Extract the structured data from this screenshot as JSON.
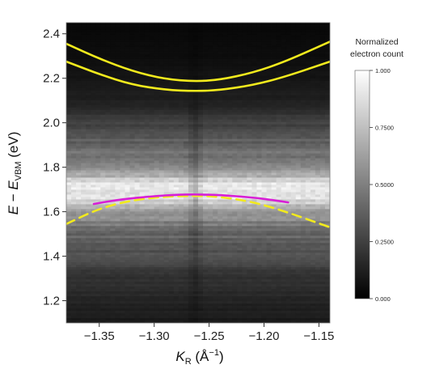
{
  "chart_data": {
    "type": "heatmap",
    "title": "",
    "xlabel": {
      "main": "K",
      "sub": "R",
      "unit": " (Å",
      "exp": "−1",
      "close": ")"
    },
    "ylabel": {
      "main": "E",
      "dash": " − ",
      "main2": "E",
      "sub": "VBM",
      "unit": " (eV)"
    },
    "xlim": [
      -1.38,
      -1.14
    ],
    "ylim": [
      1.1,
      2.45
    ],
    "xticks": [
      {
        "value": -1.35,
        "label": "−1.35"
      },
      {
        "value": -1.3,
        "label": "−1.30"
      },
      {
        "value": -1.25,
        "label": "−1.25"
      },
      {
        "value": -1.2,
        "label": "−1.20"
      },
      {
        "value": -1.15,
        "label": "−1.15"
      }
    ],
    "yticks": [
      {
        "value": 1.2,
        "label": "1.2"
      },
      {
        "value": 1.4,
        "label": "1.4"
      },
      {
        "value": 1.6,
        "label": "1.6"
      },
      {
        "value": 1.8,
        "label": "1.8"
      },
      {
        "value": 2.0,
        "label": "2.0"
      },
      {
        "value": 2.2,
        "label": "2.2"
      },
      {
        "value": 2.4,
        "label": "2.4"
      }
    ],
    "colorbar": {
      "title": [
        "Normalized",
        "electron count"
      ],
      "range": [
        0,
        1
      ],
      "colormap": [
        "#000000",
        "#ffffff"
      ],
      "ticks": [
        {
          "value": 1.0,
          "label": "1.000"
        },
        {
          "value": 0.75,
          "label": "0.7500"
        },
        {
          "value": 0.5,
          "label": "0.5000"
        },
        {
          "value": 0.25,
          "label": "0.2500"
        },
        {
          "value": 0.0,
          "label": "0.000"
        }
      ]
    },
    "intensity_profile": {
      "energies": [
        1.1,
        1.2,
        1.3,
        1.4,
        1.5,
        1.55,
        1.6,
        1.64,
        1.67,
        1.7,
        1.73,
        1.76,
        1.8,
        1.85,
        1.9,
        1.95,
        2.0,
        2.05,
        2.1,
        2.2,
        2.3,
        2.45
      ],
      "values": [
        0.1,
        0.14,
        0.2,
        0.3,
        0.4,
        0.5,
        0.6,
        0.8,
        0.85,
        0.9,
        0.85,
        0.7,
        0.55,
        0.45,
        0.4,
        0.32,
        0.25,
        0.18,
        0.12,
        0.08,
        0.05,
        0.03
      ],
      "momentum_dip_center": -1.263
    },
    "series": [
      {
        "color": "#f2ea1d",
        "style": "solid",
        "x": [
          -1.38,
          -1.35,
          -1.32,
          -1.29,
          -1.263,
          -1.24,
          -1.21,
          -1.18,
          -1.14
        ],
        "y": [
          2.355,
          2.288,
          2.232,
          2.196,
          2.186,
          2.193,
          2.225,
          2.276,
          2.365
        ]
      },
      {
        "color": "#f2ea1d",
        "style": "solid",
        "x": [
          -1.38,
          -1.35,
          -1.32,
          -1.29,
          -1.263,
          -1.24,
          -1.21,
          -1.18,
          -1.14
        ],
        "y": [
          2.275,
          2.218,
          2.171,
          2.148,
          2.142,
          2.147,
          2.169,
          2.208,
          2.275
        ]
      },
      {
        "color": "#f2ea1d",
        "style": "dashed",
        "x": [
          -1.38,
          -1.35,
          -1.32,
          -1.29,
          -1.263,
          -1.24,
          -1.21,
          -1.18,
          -1.14
        ],
        "y": [
          1.545,
          1.615,
          1.652,
          1.668,
          1.672,
          1.667,
          1.644,
          1.6,
          1.53
        ]
      },
      {
        "color": "#d81fd6",
        "style": "solid",
        "x": [
          -1.355,
          -1.33,
          -1.3,
          -1.28,
          -1.263,
          -1.24,
          -1.21,
          -1.19,
          -1.178
        ],
        "y": [
          1.635,
          1.656,
          1.67,
          1.676,
          1.678,
          1.675,
          1.664,
          1.651,
          1.642
        ]
      }
    ]
  }
}
